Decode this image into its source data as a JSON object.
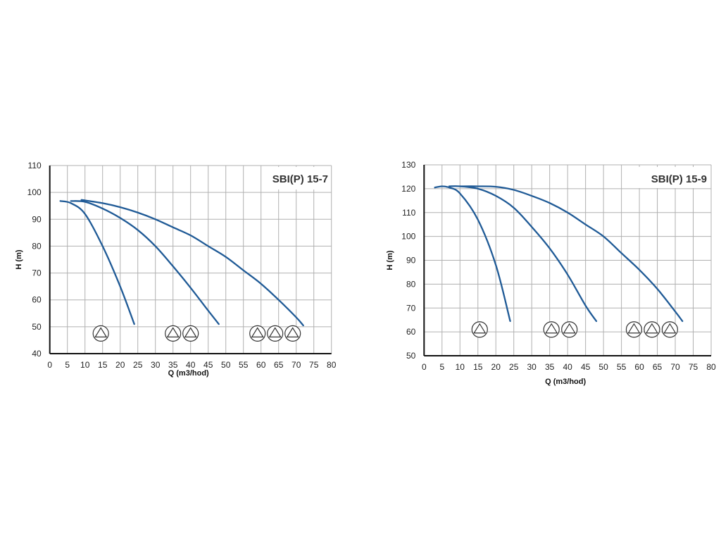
{
  "colors": {
    "curve": "#1f5a96",
    "grid": "#b0b0b0",
    "axis": "#111111"
  },
  "chart_data": [
    {
      "type": "line",
      "title": "SBI(P) 15-7",
      "xlabel": "Q (m3/hod)",
      "ylabel": "H (m)",
      "xlim": [
        0,
        80
      ],
      "ylim": [
        40,
        110
      ],
      "xticks": [
        0,
        5,
        10,
        15,
        20,
        25,
        30,
        35,
        40,
        45,
        50,
        55,
        60,
        65,
        70,
        75,
        80
      ],
      "yticks": [
        40,
        50,
        60,
        70,
        80,
        90,
        100,
        110
      ],
      "grid": true,
      "series": [
        {
          "x": [
            3,
            6,
            10,
            15,
            20,
            24
          ],
          "y": [
            96.8,
            96,
            92,
            80,
            65,
            51
          ]
        },
        {
          "x": [
            6,
            10,
            15,
            20,
            25,
            30,
            35,
            40,
            45,
            48
          ],
          "y": [
            96.8,
            96.5,
            94,
            90.5,
            86,
            80,
            72.5,
            64.5,
            56,
            51
          ]
        },
        {
          "x": [
            9,
            15,
            20,
            25,
            30,
            35,
            40,
            45,
            50,
            55,
            60,
            65,
            70,
            72
          ],
          "y": [
            97.2,
            96,
            94.5,
            92.5,
            90,
            87,
            84,
            80,
            76,
            71,
            66,
            60,
            53.5,
            50.5
          ]
        }
      ],
      "pump_symbols": {
        "y": 47.5,
        "x": [
          14.5,
          35,
          40,
          59,
          64,
          69
        ]
      }
    },
    {
      "type": "line",
      "title": "SBI(P) 15-9",
      "xlabel": "Q (m3/hod)",
      "ylabel": "H (m)",
      "xlim": [
        0,
        80
      ],
      "ylim": [
        50,
        130
      ],
      "xticks": [
        0,
        5,
        10,
        15,
        20,
        25,
        30,
        35,
        40,
        45,
        50,
        55,
        60,
        65,
        70,
        75,
        80
      ],
      "yticks": [
        50,
        60,
        70,
        80,
        90,
        100,
        110,
        120,
        130
      ],
      "grid": true,
      "series": [
        {
          "x": [
            3,
            5,
            7,
            10,
            15,
            20,
            24
          ],
          "y": [
            120.5,
            121,
            120.5,
            118,
            107,
            88,
            64.5
          ]
        },
        {
          "x": [
            7,
            10,
            15,
            20,
            25,
            30,
            35,
            40,
            45,
            48
          ],
          "y": [
            121,
            121,
            120,
            117,
            112,
            104,
            95,
            84,
            71,
            64.5
          ]
        },
        {
          "x": [
            10,
            15,
            20,
            25,
            30,
            35,
            40,
            45,
            50,
            55,
            60,
            65,
            70,
            72
          ],
          "y": [
            121,
            121,
            120.8,
            119.5,
            117,
            114,
            110,
            105,
            100,
            93,
            86,
            78,
            68.5,
            64.5
          ]
        }
      ],
      "pump_symbols": {
        "y": 61,
        "x": [
          15.5,
          35.5,
          40.5,
          58.5,
          63.5,
          68.5
        ]
      }
    }
  ]
}
